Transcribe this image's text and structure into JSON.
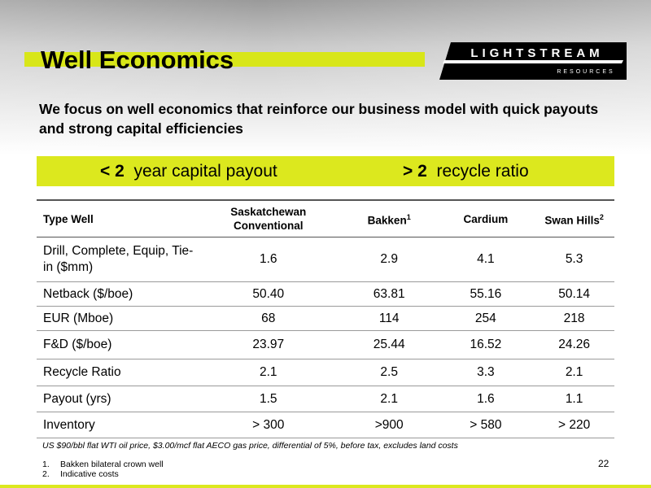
{
  "header": {
    "title": "Well Economics",
    "logo": {
      "name": "LIGHTSTREAM",
      "tagline": "RESOURCES"
    },
    "subtitle": "We focus on well economics that reinforce our business model with quick payouts and strong capital efficiencies"
  },
  "highlights": [
    {
      "lead": "< 2",
      "text": "year capital payout"
    },
    {
      "lead": "> 2",
      "text": "recycle ratio"
    }
  ],
  "table": {
    "columns": [
      {
        "text": "Type Well"
      },
      {
        "text": "Saskatchewan Conventional"
      },
      {
        "text": "Bakken",
        "note": "1"
      },
      {
        "text": "Cardium"
      },
      {
        "text": "Swan Hills",
        "note": "2"
      }
    ],
    "rows": [
      [
        "Drill, Complete, Equip, Tie-in ($mm)",
        "1.6",
        "2.9",
        "4.1",
        "5.3"
      ],
      [
        "Netback ($/boe)",
        "50.40",
        "63.81",
        "55.16",
        "50.14"
      ],
      [
        "EUR (Mboe)",
        "68",
        "114",
        "254",
        "218"
      ],
      [
        "F&D ($/boe)",
        "23.97",
        "25.44",
        "16.52",
        "24.26"
      ],
      [
        "Recycle Ratio",
        "2.1",
        "2.5",
        "3.3",
        "2.1"
      ],
      [
        "Payout (yrs)",
        "1.5",
        "2.1",
        "1.6",
        "1.1"
      ],
      [
        "Inventory",
        "> 300",
        ">900",
        "> 580",
        "> 220"
      ]
    ]
  },
  "basis": "US $90/bbl flat WTI oil price, $3.00/mcf flat AECO gas price, differential of 5%, before tax, excludes land costs",
  "footnotes": [
    {
      "number": "1.",
      "text": "Bakken bilateral crown well"
    },
    {
      "number": "2.",
      "text": "Indicative costs"
    }
  ],
  "page_number": "22"
}
